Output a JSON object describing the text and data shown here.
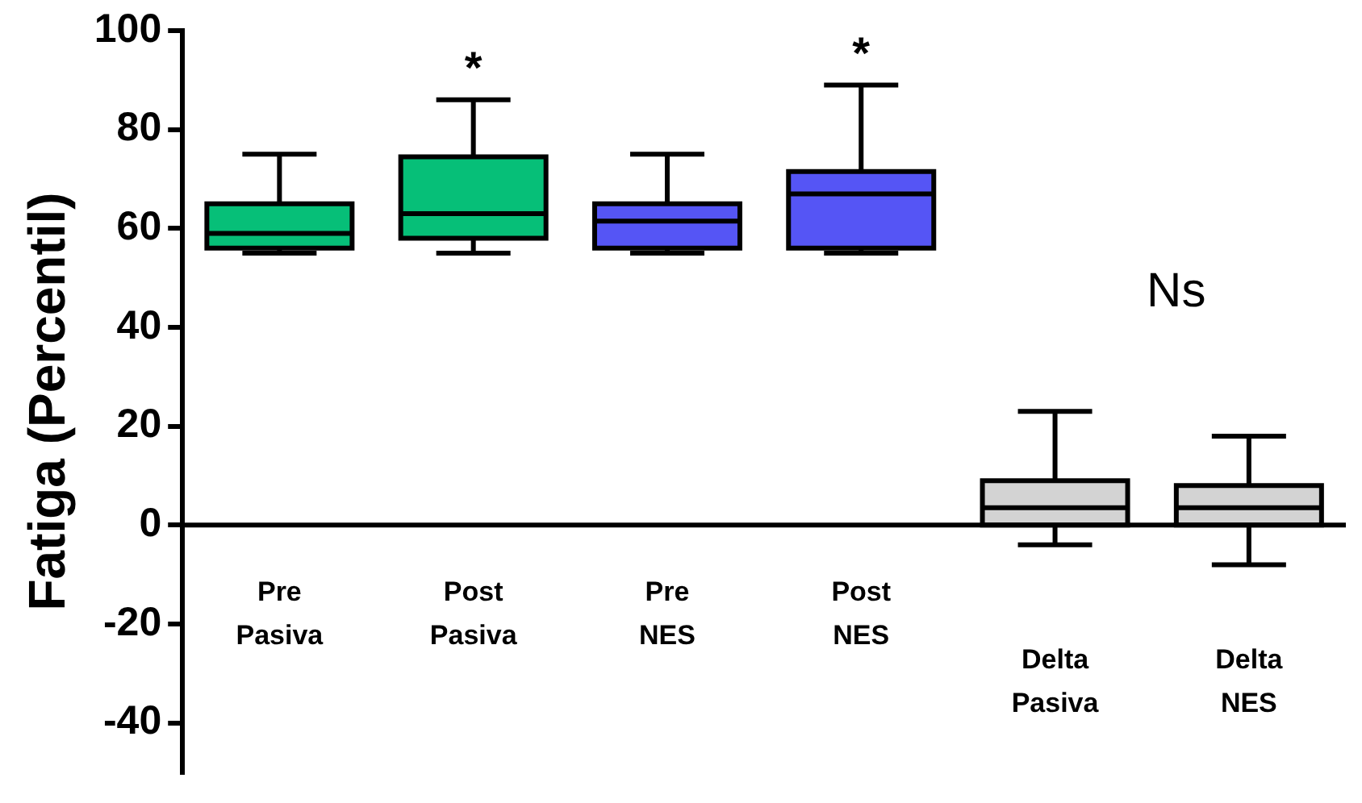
{
  "chart_data": {
    "type": "box",
    "ylabel": "Fatiga (Percentil)",
    "categories": [
      "Pre Pasiva",
      "Post Pasiva",
      "Pre NES",
      "Post NES",
      "Delta Pasiva",
      "Delta NES"
    ],
    "boxes": [
      {
        "low": 55,
        "q1": 56,
        "median": 59,
        "q3": 65,
        "high": 75
      },
      {
        "low": 55,
        "q1": 58,
        "median": 63,
        "q3": 74.5,
        "high": 86
      },
      {
        "low": 55,
        "q1": 56,
        "median": 61.5,
        "q3": 65,
        "high": 75
      },
      {
        "low": 55,
        "q1": 56,
        "median": 67,
        "q3": 71.5,
        "high": 89
      },
      {
        "low": -4,
        "q1": 0,
        "median": 3.5,
        "q3": 9,
        "high": 23
      },
      {
        "low": -8,
        "q1": 0,
        "median": 3.5,
        "q3": 8,
        "high": 18
      }
    ],
    "colors": [
      "#06bf78",
      "#06bf78",
      "#5555f5",
      "#5555f5",
      "#d3d3d3",
      "#d3d3d3"
    ],
    "ylim": [
      -50,
      100
    ],
    "yticks": [
      -40,
      -20,
      0,
      20,
      40,
      60,
      80,
      100
    ],
    "annotations": [
      "*",
      "*",
      "Ns"
    ],
    "legend": false
  }
}
